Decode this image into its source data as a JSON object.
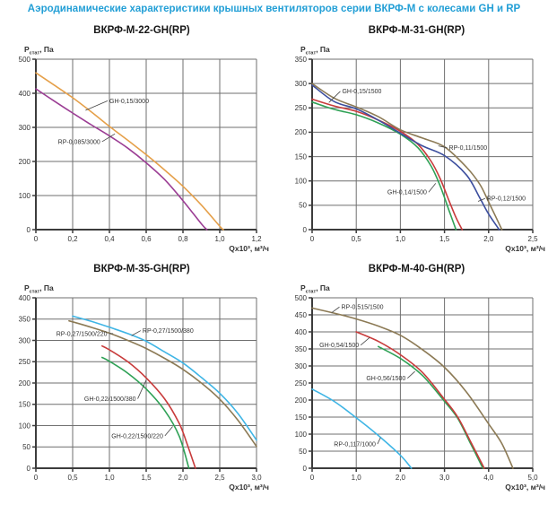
{
  "page": {
    "title": "Аэродинамические характеристики крышных вентиляторов серии ВКРФ-М с колесами GH и RP",
    "title_color": "#239FD6"
  },
  "colors": {
    "grid": "#6F6F6F",
    "axis": "#3C3C3C",
    "tick_text": "#333333",
    "label_text": "#333333",
    "leader": "#444444"
  },
  "axes": {
    "y_main": "P",
    "y_sub": "стат",
    "y_rest": ", Па",
    "x": "Qх10³, м³/ч"
  },
  "chart_data": [
    {
      "type": "line",
      "title": "ВКРФ-М-22-GH(RP)",
      "xlabel": "Qх10³, м³/ч",
      "ylabel": "Pстат, Па",
      "xlim": [
        0,
        1.2
      ],
      "ylim": [
        0,
        500
      ],
      "grid": true,
      "xticks": {
        "values": [
          0,
          0.2,
          0.4,
          0.6,
          0.8,
          1.0,
          1.2
        ],
        "labels": [
          "0",
          "0,2",
          "0,4",
          "0,6",
          "0,8",
          "1,0",
          "1,2"
        ]
      },
      "yticks": {
        "values": [
          0,
          100,
          200,
          300,
          400,
          500
        ],
        "labels": [
          "0",
          "100",
          "200",
          "300",
          "400",
          "500"
        ]
      },
      "series": [
        {
          "name": "RP-0,085/3000",
          "color": "#9B3D94",
          "points": [
            [
              0,
              413
            ],
            [
              0.1,
              377
            ],
            [
              0.2,
              342
            ],
            [
              0.3,
              308
            ],
            [
              0.4,
              275
            ],
            [
              0.5,
              239
            ],
            [
              0.6,
              196
            ],
            [
              0.7,
              147
            ],
            [
              0.8,
              85
            ],
            [
              0.9,
              17
            ],
            [
              0.93,
              0
            ]
          ],
          "label": {
            "x": 0.35,
            "y": 258,
            "side": "right",
            "tx": 0.43,
            "ty": 281
          }
        },
        {
          "name": "GH-0,15/3000",
          "color": "#E5A04A",
          "points": [
            [
              0,
              460
            ],
            [
              0.1,
              424
            ],
            [
              0.2,
              387
            ],
            [
              0.3,
              346
            ],
            [
              0.4,
              303
            ],
            [
              0.5,
              262
            ],
            [
              0.6,
              220
            ],
            [
              0.7,
              175
            ],
            [
              0.8,
              127
            ],
            [
              0.9,
              72
            ],
            [
              1.0,
              10
            ],
            [
              1.02,
              0
            ]
          ],
          "label": {
            "x": 0.4,
            "y": 378,
            "side": "left",
            "tx": 0.27,
            "ty": 350
          }
        }
      ]
    },
    {
      "type": "line",
      "title": "ВКРФ-М-31-GH(RP)",
      "xlabel": "Qх10³, м³/ч",
      "ylabel": "Pстат, Па",
      "xlim": [
        0,
        2.5
      ],
      "ylim": [
        0,
        350
      ],
      "grid": true,
      "xticks": {
        "values": [
          0,
          0.5,
          1.0,
          1.5,
          2.0,
          2.5
        ],
        "labels": [
          "0",
          "0,5",
          "1,0",
          "1,5",
          "2,0",
          "2,5"
        ]
      },
      "yticks": {
        "values": [
          0,
          50,
          100,
          150,
          200,
          250,
          300,
          350
        ],
        "labels": [
          "0",
          "50",
          "100",
          "150",
          "200",
          "250",
          "300",
          "350"
        ]
      },
      "series": [
        {
          "name": "GH-0,14/1500",
          "color": "#2FA156",
          "points": [
            [
              0,
              262
            ],
            [
              0.25,
              247
            ],
            [
              0.5,
              236
            ],
            [
              0.75,
              219
            ],
            [
              1.0,
              196
            ],
            [
              1.2,
              168
            ],
            [
              1.35,
              130
            ],
            [
              1.45,
              90
            ],
            [
              1.55,
              40
            ],
            [
              1.63,
              0
            ]
          ],
          "label": {
            "x": 1.3,
            "y": 77,
            "side": "right",
            "tx": 1.4,
            "ty": 95
          }
        },
        {
          "name": "GH-0,15/1500",
          "color": "#C83B3B",
          "points": [
            [
              0,
              268
            ],
            [
              0.25,
              254
            ],
            [
              0.5,
              243
            ],
            [
              0.75,
              225
            ],
            [
              1.0,
              202
            ],
            [
              1.2,
              175
            ],
            [
              1.35,
              140
            ],
            [
              1.45,
              105
            ],
            [
              1.55,
              60
            ],
            [
              1.63,
              25
            ],
            [
              1.7,
              0
            ]
          ],
          "label": {
            "x": 0.34,
            "y": 284,
            "side": "left",
            "tx": 0.19,
            "ty": 261
          }
        },
        {
          "name": "RP-0,12/1500",
          "color": "#3C4E9E",
          "points": [
            [
              0,
              297
            ],
            [
              0.25,
              263
            ],
            [
              0.5,
              248
            ],
            [
              0.75,
              225
            ],
            [
              1.0,
              198
            ],
            [
              1.25,
              172
            ],
            [
              1.5,
              152
            ],
            [
              1.75,
              112
            ],
            [
              1.9,
              65
            ],
            [
              2.0,
              32
            ],
            [
              2.12,
              0
            ]
          ],
          "label": {
            "x": 1.98,
            "y": 64,
            "side": "left",
            "tx": 1.88,
            "ty": 58
          }
        },
        {
          "name": "RP-0,11/1500",
          "color": "#8C7A55",
          "points": [
            [
              0,
              300
            ],
            [
              0.25,
              270
            ],
            [
              0.5,
              252
            ],
            [
              0.75,
              232
            ],
            [
              1.0,
              205
            ],
            [
              1.25,
              188
            ],
            [
              1.5,
              170
            ],
            [
              1.75,
              128
            ],
            [
              1.9,
              93
            ],
            [
              2.0,
              57
            ],
            [
              2.15,
              0
            ]
          ],
          "label": {
            "x": 1.55,
            "y": 168,
            "side": "left",
            "tx": 1.43,
            "ty": 172
          }
        }
      ]
    },
    {
      "type": "line",
      "title": "ВКРФ-М-35-GH(RP)",
      "xlabel": "Qх10³, м³/ч",
      "ylabel": "Pстат, Па",
      "xlim": [
        0,
        3.0
      ],
      "ylim": [
        0,
        400
      ],
      "grid": true,
      "xticks": {
        "values": [
          0,
          0.5,
          1.0,
          1.5,
          2.0,
          2.5,
          3.0
        ],
        "labels": [
          "0",
          "0,5",
          "1,0",
          "1,5",
          "2,0",
          "2,5",
          "3,0"
        ]
      },
      "yticks": {
        "values": [
          0,
          50,
          100,
          150,
          200,
          250,
          300,
          350,
          400
        ],
        "labels": [
          "0",
          "50",
          "100",
          "150",
          "200",
          "250",
          "300",
          "350",
          "400"
        ]
      },
      "series": [
        {
          "name": "GH-0,22/1500/220",
          "color": "#2FA156",
          "points": [
            [
              0.9,
              260
            ],
            [
              1.0,
              251
            ],
            [
              1.25,
              223
            ],
            [
              1.5,
              186
            ],
            [
              1.75,
              136
            ],
            [
              1.95,
              75
            ],
            [
              2.08,
              0
            ]
          ],
          "label": {
            "x": 1.73,
            "y": 76,
            "side": "right",
            "tx": 1.86,
            "ty": 98
          }
        },
        {
          "name": "GH-0,22/1500/380",
          "color": "#C83B3B",
          "points": [
            [
              0.9,
              287
            ],
            [
              1.0,
              278
            ],
            [
              1.25,
              250
            ],
            [
              1.5,
              212
            ],
            [
              1.75,
              163
            ],
            [
              1.95,
              105
            ],
            [
              2.05,
              60
            ],
            [
              2.17,
              0
            ]
          ],
          "label": {
            "x": 1.36,
            "y": 163,
            "side": "right",
            "tx": 1.5,
            "ty": 207
          }
        },
        {
          "name": "RP-0,27/1500/220",
          "color": "#8C7A55",
          "points": [
            [
              0.45,
              346
            ],
            [
              0.75,
              331
            ],
            [
              1.0,
              317
            ],
            [
              1.25,
              300
            ],
            [
              1.5,
              281
            ],
            [
              1.75,
              258
            ],
            [
              2.0,
              232
            ],
            [
              2.25,
              200
            ],
            [
              2.5,
              162
            ],
            [
              2.75,
              112
            ],
            [
              3.0,
              51
            ]
          ],
          "label": {
            "x": 0.97,
            "y": 316,
            "side": "right",
            "tx": 1.05,
            "ty": 316
          }
        },
        {
          "name": "RP-0,27/1500/380",
          "color": "#3FB5E5",
          "points": [
            [
              0.5,
              357
            ],
            [
              0.75,
              345
            ],
            [
              1.0,
              331
            ],
            [
              1.25,
              316
            ],
            [
              1.5,
              298
            ],
            [
              1.75,
              273
            ],
            [
              2.0,
              247
            ],
            [
              2.25,
              213
            ],
            [
              2.5,
              176
            ],
            [
              2.75,
              128
            ],
            [
              3.0,
              66
            ]
          ],
          "label": {
            "x": 1.45,
            "y": 323,
            "side": "left",
            "tx": 1.3,
            "ty": 311
          }
        }
      ]
    },
    {
      "type": "line",
      "title": "ВКРФ-М-40-GH(RP)",
      "xlabel": "Qх10³, м³/ч",
      "ylabel": "Pстат, Па",
      "xlim": [
        0,
        5.0
      ],
      "ylim": [
        0,
        500
      ],
      "grid": true,
      "xticks": {
        "values": [
          0,
          1.0,
          2.0,
          3.0,
          4.0,
          5.0
        ],
        "labels": [
          "0",
          "1,0",
          "2,0",
          "3,0",
          "4,0",
          "5,0"
        ]
      },
      "yticks": {
        "values": [
          0,
          50,
          100,
          150,
          200,
          250,
          300,
          350,
          400,
          450,
          500
        ],
        "labels": [
          "0",
          "50",
          "100",
          "150",
          "200",
          "250",
          "300",
          "350",
          "400",
          "450",
          "500"
        ]
      },
      "series": [
        {
          "name": "RP-0,117/1000",
          "color": "#3FB5E5",
          "points": [
            [
              0,
              232
            ],
            [
              0.5,
              196
            ],
            [
              1.0,
              148
            ],
            [
              1.5,
              96
            ],
            [
              2.0,
              38
            ],
            [
              2.25,
              0
            ]
          ],
          "label": {
            "x": 1.44,
            "y": 71,
            "side": "right",
            "tx": 1.55,
            "ty": 90
          }
        },
        {
          "name": "GH-0,56/1500",
          "color": "#2FA156",
          "points": [
            [
              1.5,
              357
            ],
            [
              2.0,
              322
            ],
            [
              2.5,
              272
            ],
            [
              3.0,
              196
            ],
            [
              3.3,
              146
            ],
            [
              3.6,
              70
            ],
            [
              3.87,
              0
            ]
          ],
          "label": {
            "x": 2.12,
            "y": 264,
            "side": "right",
            "tx": 2.33,
            "ty": 284
          }
        },
        {
          "name": "GH-0,54/1500",
          "color": "#C83B3B",
          "points": [
            [
              1.0,
              400
            ],
            [
              1.5,
              372
            ],
            [
              2.0,
              333
            ],
            [
              2.5,
              281
            ],
            [
              3.0,
              202
            ],
            [
              3.3,
              150
            ],
            [
              3.6,
              76
            ],
            [
              3.9,
              0
            ]
          ],
          "label": {
            "x": 1.06,
            "y": 361,
            "side": "right",
            "tx": 1.3,
            "ty": 383
          }
        },
        {
          "name": "RP-0,515/1500",
          "color": "#8C7A55",
          "points": [
            [
              0,
              470
            ],
            [
              0.5,
              455
            ],
            [
              1.0,
              438
            ],
            [
              1.5,
              417
            ],
            [
              2.0,
              390
            ],
            [
              2.5,
              348
            ],
            [
              3.0,
              296
            ],
            [
              3.5,
              223
            ],
            [
              4.0,
              130
            ],
            [
              4.3,
              72
            ],
            [
              4.55,
              0
            ]
          ],
          "label": {
            "x": 0.66,
            "y": 473,
            "side": "left",
            "tx": 0.44,
            "ty": 456
          }
        }
      ]
    }
  ]
}
